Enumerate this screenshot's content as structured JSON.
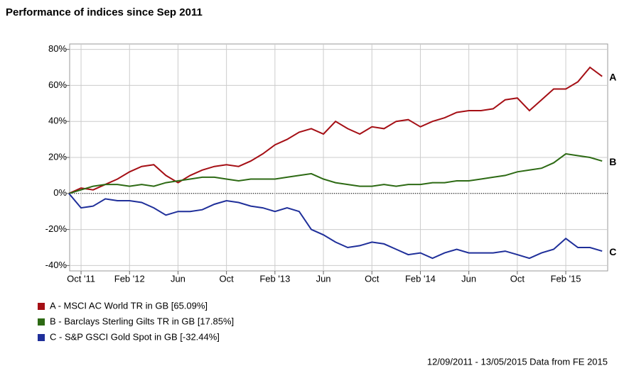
{
  "chart_data": {
    "type": "line",
    "title": "Performance of indices since Sep 2011",
    "footer": "12/09/2011 - 13/05/2015 Data from FE 2015",
    "categories": [
      null,
      "Oct '11",
      null,
      null,
      null,
      "Feb '12",
      null,
      null,
      null,
      "Jun",
      null,
      null,
      null,
      "Oct",
      null,
      null,
      null,
      "Feb '13",
      null,
      null,
      null,
      "Jun",
      null,
      null,
      null,
      "Oct",
      null,
      null,
      null,
      "Feb '14",
      null,
      null,
      null,
      "Jun",
      null,
      null,
      null,
      "Oct",
      null,
      null,
      null,
      "Feb '15",
      null,
      null,
      null
    ],
    "series": [
      {
        "name": "A - MSCI AC World TR in GB [65.09%]",
        "end_label": "A",
        "color": "#a50f15",
        "values": [
          0,
          3,
          2,
          5,
          8,
          12,
          15,
          16,
          10,
          6,
          10,
          13,
          15,
          16,
          15,
          18,
          22,
          27,
          30,
          34,
          36,
          33,
          40,
          36,
          33,
          37,
          36,
          40,
          41,
          37,
          40,
          42,
          45,
          46,
          46,
          47,
          52,
          53,
          46,
          52,
          58,
          58,
          62,
          70,
          65
        ]
      },
      {
        "name": "B - Barclays Sterling Gilts TR in GB [17.85%]",
        "end_label": "B",
        "color": "#2d6a14",
        "values": [
          0,
          2,
          4,
          5,
          5,
          4,
          5,
          4,
          6,
          7,
          8,
          9,
          9,
          8,
          7,
          8,
          8,
          8,
          9,
          10,
          11,
          8,
          6,
          5,
          4,
          4,
          5,
          4,
          5,
          5,
          6,
          6,
          7,
          7,
          8,
          9,
          10,
          12,
          13,
          14,
          17,
          22,
          21,
          20,
          18
        ]
      },
      {
        "name": "C - S&P GSCI Gold Spot in GB [-32.44%]",
        "end_label": "C",
        "color": "#1f2f9a",
        "values": [
          0,
          -8,
          -7,
          -3,
          -4,
          -4,
          -5,
          -8,
          -12,
          -10,
          -10,
          -9,
          -6,
          -4,
          -5,
          -7,
          -8,
          -10,
          -8,
          -10,
          -20,
          -23,
          -27,
          -30,
          -29,
          -27,
          -28,
          -31,
          -34,
          -33,
          -36,
          -33,
          -31,
          -33,
          -33,
          -33,
          -32,
          -34,
          -36,
          -33,
          -31,
          -25,
          -30,
          -30,
          -32
        ]
      }
    ],
    "ylim": [
      -43,
      83
    ],
    "yticks": [
      {
        "value": -40,
        "label": "-40%"
      },
      {
        "value": -20,
        "label": "-20%"
      },
      {
        "value": 0,
        "label": "0%"
      },
      {
        "value": 20,
        "label": "20%"
      },
      {
        "value": 40,
        "label": "40%"
      },
      {
        "value": 60,
        "label": "60%"
      },
      {
        "value": 80,
        "label": "80%"
      }
    ],
    "grid": true
  }
}
